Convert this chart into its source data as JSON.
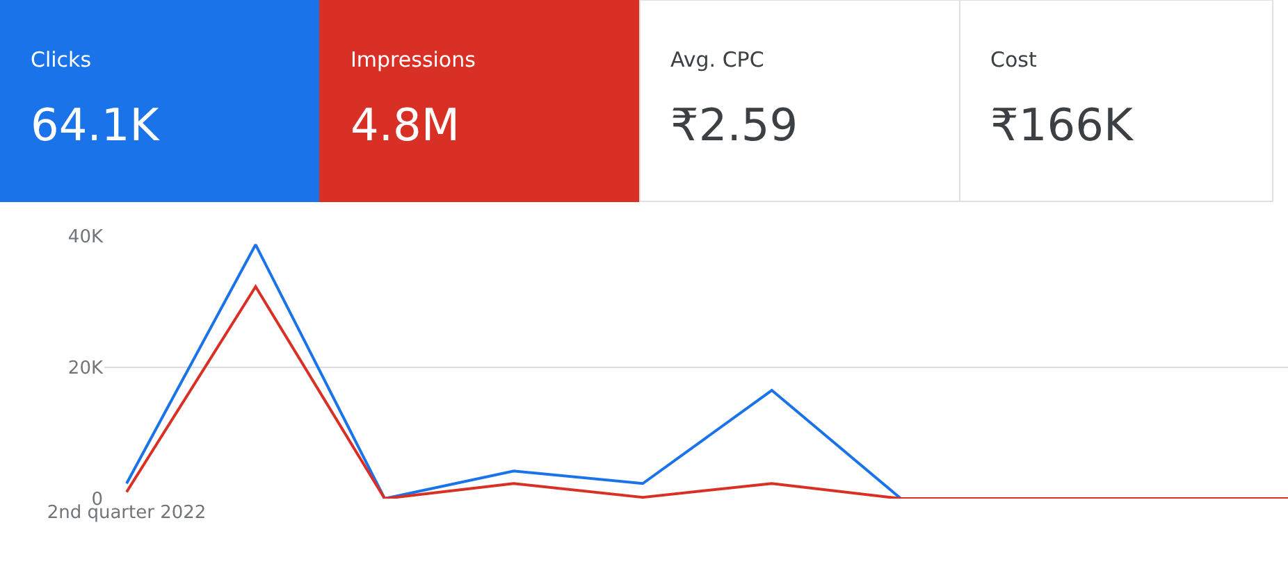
{
  "chart_data": [
    {
      "type": "other",
      "annotations": [
        "Clicks",
        "64.1K",
        "Impressions",
        "4.8M",
        "Avg. CPC",
        "₹2.59",
        "Cost",
        "₹166K"
      ],
      "colors": [
        "#1a73e8",
        "#d93025",
        "#ffffff",
        "#ffffff"
      ]
    },
    {
      "type": "line",
      "categories": [
        "2nd quarter 2022",
        null,
        null,
        null,
        null,
        null,
        null,
        null,
        null,
        null
      ],
      "series": [
        {
          "color": "#1a73e8",
          "values": [
            2300,
            38700,
            0,
            4200,
            2300,
            16500,
            0,
            0,
            null,
            null
          ]
        },
        {
          "color": "#d93025",
          "values": [
            1000,
            32300,
            0,
            2300,
            200,
            2300,
            0,
            0,
            0,
            0
          ]
        }
      ],
      "ylim": [
        0,
        40000
      ],
      "yticks": [
        {
          "value": 0,
          "label": "0"
        },
        {
          "value": 20000,
          "label": "20K"
        },
        {
          "value": 40000,
          "label": "40K"
        }
      ],
      "grid": "y",
      "marker": "none",
      "line_style": "solid"
    }
  ]
}
